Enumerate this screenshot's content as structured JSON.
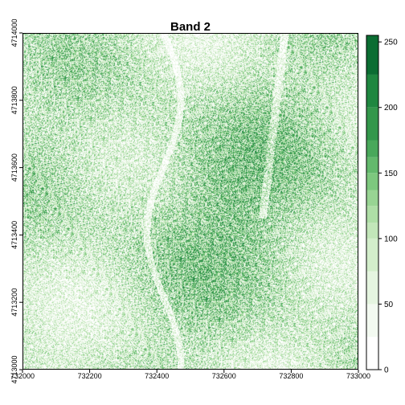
{
  "chart_data": {
    "type": "heatmap",
    "title": "Band 2",
    "xlabel": "",
    "ylabel": "",
    "x_range": [
      732000,
      733000
    ],
    "y_range": [
      4713000,
      4714000
    ],
    "x_ticks": [
      732000,
      732200,
      732400,
      732600,
      732800,
      733000
    ],
    "x_tick_labels": [
      "732000",
      "732200",
      "732400",
      "732600",
      "732800",
      "733000"
    ],
    "y_ticks": [
      4713000,
      4713200,
      4713400,
      4713600,
      4713800,
      4714000
    ],
    "y_tick_labels": [
      "4713000",
      "4713200",
      "4713400",
      "4713600",
      "4713800",
      "4714000"
    ],
    "value_range": [
      0,
      255
    ],
    "colorbar": {
      "ticks": [
        0,
        50,
        100,
        150,
        200,
        250
      ],
      "tick_labels": [
        "0",
        "50",
        "100",
        "150",
        "200",
        "250"
      ],
      "breaks": [
        0,
        25,
        50,
        75,
        100,
        112,
        125,
        137,
        150,
        162,
        175,
        200,
        225,
        255
      ],
      "colors": [
        "#ffffff",
        "#f3faf1",
        "#e5f5e0",
        "#d3eecb",
        "#c2e6b9",
        "#aedea6",
        "#98d493",
        "#7dc87e",
        "#63b96c",
        "#49a85b",
        "#33974b",
        "#1f8740",
        "#0b6d32",
        "#00441b"
      ],
      "placement": "right"
    },
    "grid": false
  }
}
